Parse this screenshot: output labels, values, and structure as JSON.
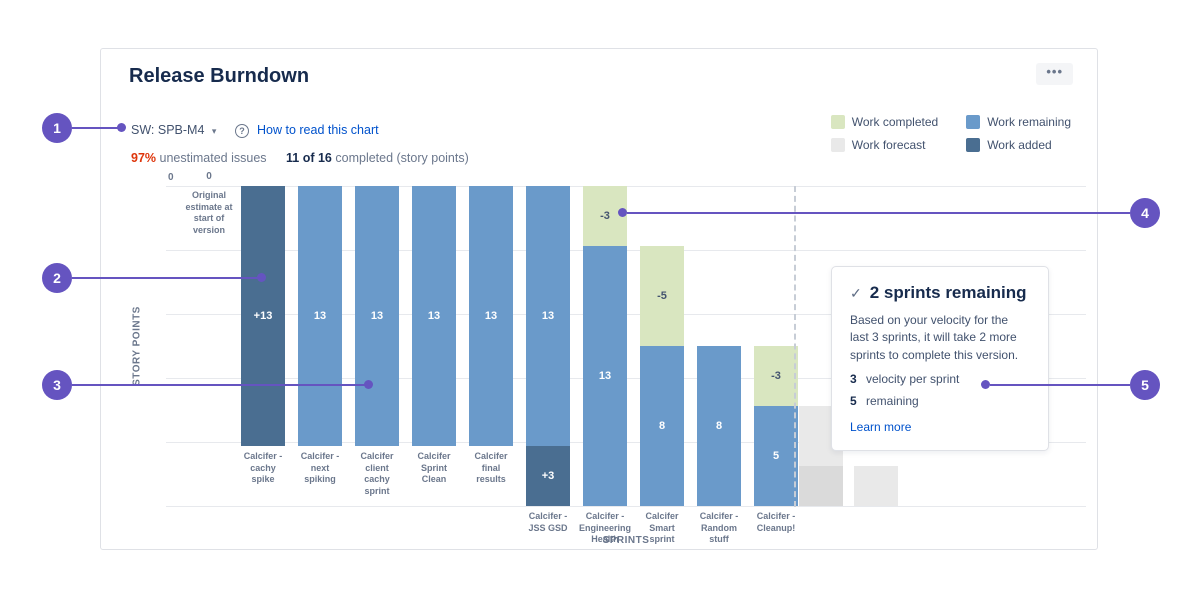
{
  "header": {
    "title": "Release Burndown",
    "more_icon": "•••"
  },
  "controls": {
    "board_selector": {
      "label": "SW: SPB-M4",
      "caret": "▾"
    },
    "help_icon": "?",
    "help_link": "How to read this chart"
  },
  "legend": {
    "items": [
      {
        "label": "Work completed",
        "color": "#d9e6c0"
      },
      {
        "label": "Work remaining",
        "color": "#6a9aca"
      },
      {
        "label": "Work forecast",
        "color": "#e9e9e9"
      },
      {
        "label": "Work added",
        "color": "#4a6e91"
      }
    ]
  },
  "stats": {
    "unestimated_value": "97%",
    "unestimated_label": "unestimated issues",
    "completed_value": "11 of 16",
    "completed_label": "completed (story points)"
  },
  "chart_data": {
    "type": "bar",
    "title": "Release Burndown",
    "xlabel": "SPRINTS",
    "ylabel": "STORY POINTS",
    "y_axis": {
      "zero_label": "0",
      "max_story_points": 16,
      "gridlines": 6,
      "direction": "0 at top, points increase downward"
    },
    "origin_column": {
      "value": 0,
      "value_label": "0",
      "label": "Original estimate at start of version"
    },
    "colors": {
      "completed": "#d9e6c0",
      "remaining": "#6a9aca",
      "added": "#4a6e91",
      "forecast": "#e9e9e9",
      "forecast_dark": "#dadada"
    },
    "sprints": [
      {
        "name": "Calcifer -\ncachy\nspike",
        "start": 0,
        "segments": [
          {
            "type": "added",
            "value": 13,
            "label": "+13"
          }
        ]
      },
      {
        "name": "Calcifer -\nnext\nspiking",
        "start": 0,
        "segments": [
          {
            "type": "remaining",
            "value": 13,
            "label": "13"
          }
        ]
      },
      {
        "name": "Calcifer\nclient\ncachy\nsprint",
        "start": 0,
        "segments": [
          {
            "type": "remaining",
            "value": 13,
            "label": "13"
          }
        ]
      },
      {
        "name": "Calcifer\nSprint\nClean",
        "start": 0,
        "segments": [
          {
            "type": "remaining",
            "value": 13,
            "label": "13"
          }
        ]
      },
      {
        "name": "Calcifer\nfinal\nresults",
        "start": 0,
        "segments": [
          {
            "type": "remaining",
            "value": 13,
            "label": "13"
          }
        ]
      },
      {
        "name": "Calcifer -\nJSS GSD",
        "start": 0,
        "segments": [
          {
            "type": "remaining",
            "value": 13,
            "label": "13"
          },
          {
            "type": "added",
            "value": 3,
            "label": "+3"
          }
        ]
      },
      {
        "name": "Calcifer -\nEngineering\nHealth",
        "start": 0,
        "segments": [
          {
            "type": "completed",
            "value": 3,
            "label": "-3"
          },
          {
            "type": "remaining",
            "value": 13,
            "label": "13"
          }
        ]
      },
      {
        "name": "Calcifer\nSmart\nsprint",
        "start": 3,
        "segments": [
          {
            "type": "completed",
            "value": 5,
            "label": "-5"
          },
          {
            "type": "remaining",
            "value": 8,
            "label": "8"
          }
        ]
      },
      {
        "name": "Calcifer -\nRandom\nstuff",
        "start": 8,
        "segments": [
          {
            "type": "remaining",
            "value": 8,
            "label": "8"
          }
        ]
      },
      {
        "name": "Calcifer -\nCleanup!",
        "start": 8,
        "segments": [
          {
            "type": "completed",
            "value": 3,
            "label": "-3"
          },
          {
            "type": "remaining",
            "value": 5,
            "label": "5"
          }
        ]
      }
    ],
    "forecast": [
      {
        "start": 11,
        "segments": [
          {
            "type": "forecast",
            "value": 3
          },
          {
            "type": "forecast_dark",
            "value": 2
          }
        ]
      },
      {
        "start": 14,
        "segments": [
          {
            "type": "forecast",
            "value": 2
          }
        ]
      }
    ]
  },
  "panel": {
    "check_icon": "✓",
    "title": "2 sprints remaining",
    "body": "Based on your velocity for the last 3 sprints, it will take 2 more sprints to complete this version.",
    "rows": [
      {
        "value": "3",
        "label": "velocity per sprint"
      },
      {
        "value": "5",
        "label": "remaining"
      }
    ],
    "link": "Learn more"
  },
  "callouts": [
    {
      "number": "1"
    },
    {
      "number": "2"
    },
    {
      "number": "3"
    },
    {
      "number": "4"
    },
    {
      "number": "5"
    }
  ],
  "accent": {
    "purple": "#6554c0",
    "link": "#0052cc",
    "red": "#de350b"
  }
}
